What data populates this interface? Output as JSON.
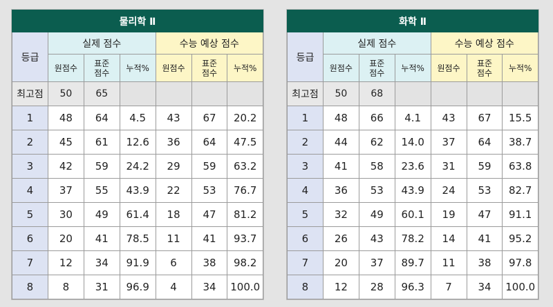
{
  "column_labels": {
    "grade": "등급",
    "actual_group": "실제 점수",
    "expected_group": "수능 예상 점수",
    "raw": "원점수",
    "std_line1": "표준",
    "std_line2": "점수",
    "cum": "누적%",
    "max_row": "최고점"
  },
  "tables": [
    {
      "title": "물리학 Ⅱ",
      "max": {
        "raw": "50",
        "std": "65"
      },
      "rows": [
        {
          "grade": "1",
          "a_raw": "48",
          "a_std": "64",
          "a_cum": "4.5",
          "e_raw": "43",
          "e_std": "67",
          "e_cum": "20.2"
        },
        {
          "grade": "2",
          "a_raw": "45",
          "a_std": "61",
          "a_cum": "12.6",
          "e_raw": "36",
          "e_std": "64",
          "e_cum": "47.5"
        },
        {
          "grade": "3",
          "a_raw": "42",
          "a_std": "59",
          "a_cum": "24.2",
          "e_raw": "29",
          "e_std": "59",
          "e_cum": "63.2"
        },
        {
          "grade": "4",
          "a_raw": "37",
          "a_std": "55",
          "a_cum": "43.9",
          "e_raw": "22",
          "e_std": "53",
          "e_cum": "76.7"
        },
        {
          "grade": "5",
          "a_raw": "30",
          "a_std": "49",
          "a_cum": "61.4",
          "e_raw": "18",
          "e_std": "47",
          "e_cum": "81.2"
        },
        {
          "grade": "6",
          "a_raw": "20",
          "a_std": "41",
          "a_cum": "78.5",
          "e_raw": "11",
          "e_std": "41",
          "e_cum": "93.7"
        },
        {
          "grade": "7",
          "a_raw": "12",
          "a_std": "34",
          "a_cum": "91.9",
          "e_raw": "6",
          "e_std": "38",
          "e_cum": "98.2"
        },
        {
          "grade": "8",
          "a_raw": "8",
          "a_std": "31",
          "a_cum": "96.9",
          "e_raw": "4",
          "e_std": "34",
          "e_cum": "100.0"
        }
      ]
    },
    {
      "title": "화학 Ⅱ",
      "max": {
        "raw": "50",
        "std": "68"
      },
      "rows": [
        {
          "grade": "1",
          "a_raw": "48",
          "a_std": "66",
          "a_cum": "4.1",
          "e_raw": "43",
          "e_std": "67",
          "e_cum": "15.5"
        },
        {
          "grade": "2",
          "a_raw": "44",
          "a_std": "62",
          "a_cum": "14.0",
          "e_raw": "37",
          "e_std": "64",
          "e_cum": "38.7"
        },
        {
          "grade": "3",
          "a_raw": "41",
          "a_std": "58",
          "a_cum": "23.6",
          "e_raw": "31",
          "e_std": "59",
          "e_cum": "63.8"
        },
        {
          "grade": "4",
          "a_raw": "36",
          "a_std": "53",
          "a_cum": "43.9",
          "e_raw": "24",
          "e_std": "53",
          "e_cum": "82.7"
        },
        {
          "grade": "5",
          "a_raw": "32",
          "a_std": "49",
          "a_cum": "60.1",
          "e_raw": "19",
          "e_std": "47",
          "e_cum": "91.1"
        },
        {
          "grade": "6",
          "a_raw": "26",
          "a_std": "43",
          "a_cum": "78.2",
          "e_raw": "14",
          "e_std": "41",
          "e_cum": "95.2"
        },
        {
          "grade": "7",
          "a_raw": "20",
          "a_std": "37",
          "a_cum": "89.7",
          "e_raw": "11",
          "e_std": "38",
          "e_cum": "97.8"
        },
        {
          "grade": "8",
          "a_raw": "12",
          "a_std": "28",
          "a_cum": "96.3",
          "e_raw": "7",
          "e_std": "34",
          "e_cum": "100.0"
        }
      ]
    }
  ],
  "colors": {
    "title_bg": "#0b5d4f",
    "grade_col_bg": "#dde3f3",
    "actual_header_bg": "#dcf1f3",
    "expected_header_bg": "#fdf6c6",
    "max_row_bg": "#e8e8e8"
  }
}
